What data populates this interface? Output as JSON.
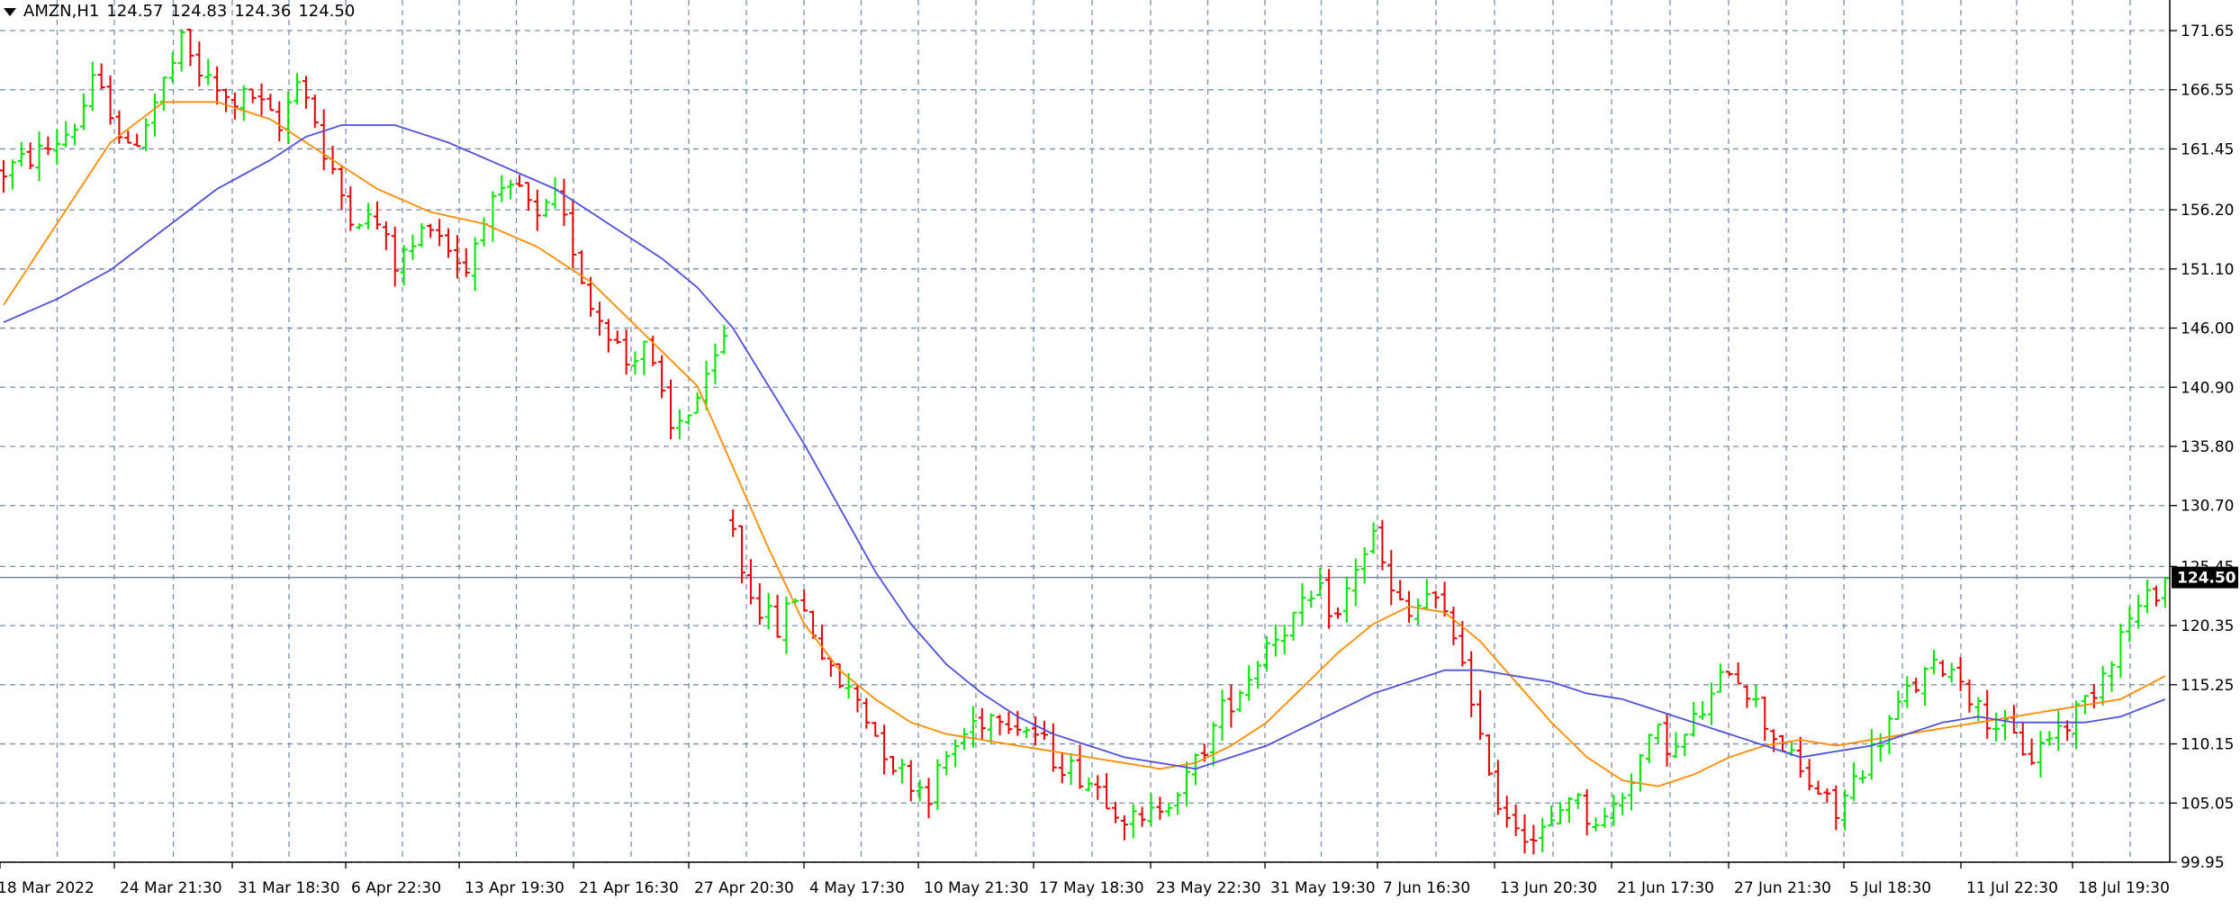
{
  "symbol": {
    "name": "AMZN,H1",
    "open": "124.57",
    "high": "124.83",
    "low": "124.36",
    "close": "124.50"
  },
  "colors": {
    "up_candle": "#00e600",
    "down_candle": "#e60000",
    "ma_fast": "#ff8c00",
    "ma_slow": "#5050dd",
    "grid": "#7a8fa6",
    "price_line": "#7a8a9a",
    "current_price_bg": "#000000",
    "current_price_fg": "#ffffff"
  },
  "chart_data": {
    "type": "line",
    "chart_style": "ohlc-bars",
    "title": "AMZN,H1",
    "ylim": [
      99.95,
      171.65
    ],
    "y_ticks": [
      "171.65",
      "166.55",
      "161.45",
      "156.20",
      "151.10",
      "146.00",
      "140.90",
      "135.80",
      "130.70",
      "125.45",
      "120.35",
      "115.25",
      "110.15",
      "105.05",
      "99.95"
    ],
    "x_ticks": [
      "18 Mar 2022",
      "24 Mar 21:30",
      "31 Mar 18:30",
      "6 Apr 22:30",
      "13 Apr 19:30",
      "21 Apr 16:30",
      "27 Apr 20:30",
      "4 May 17:30",
      "10 May 21:30",
      "17 May 18:30",
      "23 May 22:30",
      "31 May 19:30",
      "7 Jun 16:30",
      "13 Jun 20:30",
      "21 Jun 17:30",
      "27 Jun 21:30",
      "5 Jul 18:30",
      "11 Jul 22:30",
      "18 Jul 19:30"
    ],
    "current_price": "124.50",
    "grid": true,
    "price_path": [
      [
        0,
        159.5
      ],
      [
        5,
        161.5
      ],
      [
        8,
        163.5
      ],
      [
        10,
        167
      ],
      [
        12,
        165
      ],
      [
        14,
        161
      ],
      [
        17,
        165.5
      ],
      [
        20,
        170.5
      ],
      [
        22,
        168
      ],
      [
        25,
        165.5
      ],
      [
        28,
        166
      ],
      [
        31,
        163
      ],
      [
        33,
        168
      ],
      [
        35,
        164
      ],
      [
        36,
        160.5
      ],
      [
        39,
        156
      ],
      [
        42,
        155
      ],
      [
        44,
        151.5
      ],
      [
        46,
        153
      ],
      [
        48,
        155.5
      ],
      [
        50,
        153
      ],
      [
        52,
        151
      ],
      [
        54,
        156
      ],
      [
        58,
        158
      ],
      [
        60,
        155
      ],
      [
        62,
        157
      ],
      [
        64,
        153
      ],
      [
        66,
        148
      ],
      [
        68,
        146
      ],
      [
        70,
        143
      ],
      [
        72,
        145
      ],
      [
        75,
        137
      ],
      [
        77,
        139
      ],
      [
        79,
        141
      ],
      [
        81,
        145
      ],
      [
        82,
        129
      ],
      [
        83,
        125
      ],
      [
        85,
        122
      ],
      [
        87,
        120
      ],
      [
        89,
        123
      ],
      [
        91,
        120
      ],
      [
        93,
        116
      ],
      [
        96,
        114
      ],
      [
        98,
        111
      ],
      [
        100,
        108.5
      ],
      [
        102,
        107
      ],
      [
        104,
        106
      ],
      [
        106,
        109
      ],
      [
        109,
        112
      ],
      [
        112,
        113
      ],
      [
        114,
        112
      ],
      [
        116,
        111
      ],
      [
        118,
        109
      ],
      [
        121,
        107.5
      ],
      [
        123,
        106.5
      ],
      [
        126,
        104
      ],
      [
        128,
        103
      ],
      [
        130,
        105
      ],
      [
        133,
        107
      ],
      [
        135,
        110
      ],
      [
        137,
        113
      ],
      [
        140,
        116
      ],
      [
        142,
        119
      ],
      [
        145,
        121
      ],
      [
        148,
        123
      ],
      [
        150,
        121
      ],
      [
        152,
        125.5
      ],
      [
        154,
        128
      ],
      [
        156,
        123
      ],
      [
        158,
        121
      ],
      [
        160,
        123
      ],
      [
        162,
        121
      ],
      [
        164,
        118
      ],
      [
        165,
        113
      ],
      [
        166,
        110
      ],
      [
        167,
        108.5
      ],
      [
        168,
        105
      ],
      [
        170,
        103.5
      ],
      [
        172,
        102
      ],
      [
        174,
        103
      ],
      [
        176,
        106
      ],
      [
        178,
        104
      ],
      [
        180,
        103.5
      ],
      [
        182,
        106
      ],
      [
        184,
        109
      ],
      [
        186,
        111
      ],
      [
        188,
        109.5
      ],
      [
        190,
        112
      ],
      [
        192,
        114
      ],
      [
        194,
        117
      ],
      [
        196,
        115
      ],
      [
        198,
        112
      ],
      [
        200,
        110
      ],
      [
        202,
        107.5
      ],
      [
        204,
        106
      ],
      [
        206,
        104
      ],
      [
        208,
        107
      ],
      [
        210,
        109.5
      ],
      [
        212,
        112
      ],
      [
        214,
        114.5
      ],
      [
        216,
        116
      ],
      [
        218,
        117
      ],
      [
        220,
        116
      ],
      [
        222,
        113
      ],
      [
        224,
        112
      ],
      [
        226,
        110.5
      ],
      [
        228,
        109
      ],
      [
        230,
        111
      ],
      [
        232,
        112
      ],
      [
        235,
        115
      ],
      [
        237,
        118
      ],
      [
        239,
        121
      ],
      [
        241,
        122.5
      ],
      [
        243,
        124.5
      ]
    ],
    "series": [
      {
        "name": "",
        "values": [
          [
            0,
            148
          ],
          [
            6,
            155
          ],
          [
            12,
            162
          ],
          [
            18,
            165.5
          ],
          [
            24,
            165.5
          ],
          [
            30,
            164
          ],
          [
            36,
            161
          ],
          [
            42,
            158
          ],
          [
            48,
            156
          ],
          [
            54,
            155
          ],
          [
            60,
            153
          ],
          [
            66,
            150
          ],
          [
            72,
            145.5
          ],
          [
            78,
            141
          ],
          [
            82,
            134
          ],
          [
            86,
            127
          ],
          [
            90,
            120.5
          ],
          [
            94,
            116.5
          ],
          [
            98,
            114
          ],
          [
            102,
            112
          ],
          [
            106,
            111
          ],
          [
            110,
            110.5
          ],
          [
            114,
            110
          ],
          [
            118,
            109.5
          ],
          [
            122,
            109
          ],
          [
            126,
            108.5
          ],
          [
            130,
            108
          ],
          [
            134,
            108.5
          ],
          [
            138,
            110
          ],
          [
            142,
            112
          ],
          [
            146,
            115
          ],
          [
            150,
            118
          ],
          [
            154,
            120.5
          ],
          [
            158,
            122
          ],
          [
            162,
            121.5
          ],
          [
            166,
            119
          ],
          [
            170,
            115.5
          ],
          [
            174,
            112
          ],
          [
            178,
            109
          ],
          [
            182,
            107
          ],
          [
            186,
            106.5
          ],
          [
            190,
            107.5
          ],
          [
            194,
            109
          ],
          [
            198,
            110
          ],
          [
            202,
            110.5
          ],
          [
            206,
            110
          ],
          [
            210,
            110.5
          ],
          [
            214,
            111
          ],
          [
            218,
            111.5
          ],
          [
            222,
            112
          ],
          [
            226,
            112.5
          ],
          [
            230,
            113
          ],
          [
            234,
            113.5
          ],
          [
            238,
            114
          ],
          [
            243,
            116
          ]
        ]
      },
      {
        "name": "",
        "values": [
          [
            0,
            146.5
          ],
          [
            6,
            148.5
          ],
          [
            12,
            151
          ],
          [
            18,
            154.5
          ],
          [
            24,
            158
          ],
          [
            30,
            160.5
          ],
          [
            34,
            162.5
          ],
          [
            38,
            163.5
          ],
          [
            44,
            163.5
          ],
          [
            50,
            162
          ],
          [
            56,
            160
          ],
          [
            62,
            158
          ],
          [
            68,
            155
          ],
          [
            74,
            152
          ],
          [
            78,
            149.5
          ],
          [
            82,
            146
          ],
          [
            86,
            141
          ],
          [
            90,
            136
          ],
          [
            94,
            130.5
          ],
          [
            98,
            125
          ],
          [
            102,
            120.5
          ],
          [
            106,
            117
          ],
          [
            110,
            114.5
          ],
          [
            114,
            112.5
          ],
          [
            118,
            111
          ],
          [
            122,
            110
          ],
          [
            126,
            109
          ],
          [
            130,
            108.5
          ],
          [
            134,
            108
          ],
          [
            138,
            109
          ],
          [
            142,
            110
          ],
          [
            146,
            111.5
          ],
          [
            150,
            113
          ],
          [
            154,
            114.5
          ],
          [
            158,
            115.5
          ],
          [
            162,
            116.5
          ],
          [
            166,
            116.5
          ],
          [
            170,
            116
          ],
          [
            174,
            115.5
          ],
          [
            178,
            114.5
          ],
          [
            182,
            114
          ],
          [
            186,
            113
          ],
          [
            190,
            112
          ],
          [
            194,
            111
          ],
          [
            198,
            110
          ],
          [
            202,
            109
          ],
          [
            206,
            109.5
          ],
          [
            210,
            110
          ],
          [
            214,
            111
          ],
          [
            218,
            112
          ],
          [
            222,
            112.5
          ],
          [
            226,
            112
          ],
          [
            230,
            112
          ],
          [
            234,
            112
          ],
          [
            238,
            112.5
          ],
          [
            243,
            114
          ]
        ]
      }
    ]
  }
}
